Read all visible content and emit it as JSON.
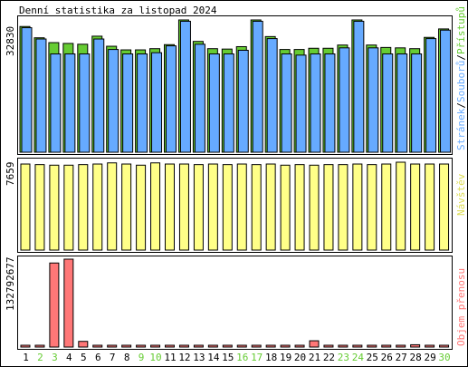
{
  "title": "Denní statistika za listopad 2024",
  "colors": {
    "pristupy": "#66cc33",
    "soubory": "#66aaff",
    "stranky": "#66aaff",
    "kb": "#ff7777",
    "navstevy": "#ffff88",
    "weekend_label": "#66cc33",
    "weekday_label": "#000000"
  },
  "panels": {
    "hits": {
      "ymax_label": "32830",
      "legend": [
        {
          "text": "Stránek",
          "color": "#66aaff"
        },
        {
          "text": "/",
          "color": "#000000"
        },
        {
          "text": "Souborů",
          "color": "#66aaff"
        },
        {
          "text": "/",
          "color": "#000000"
        },
        {
          "text": "Přístupů",
          "color": "#66cc33"
        }
      ]
    },
    "visits": {
      "ymax_label": "7659",
      "legend_text": "Návštěv"
    },
    "kb": {
      "ymax_label": "132792677",
      "legend_text": "Objem přenosu"
    }
  },
  "chart_data": [
    {
      "type": "bar",
      "title": "Denní statistika za listopad 2024",
      "categories": [
        "1",
        "2",
        "3",
        "4",
        "5",
        "6",
        "7",
        "8",
        "9",
        "10",
        "11",
        "12",
        "13",
        "14",
        "15",
        "16",
        "17",
        "18",
        "19",
        "20",
        "21",
        "22",
        "23",
        "24",
        "25",
        "26",
        "27",
        "28",
        "29",
        "30"
      ],
      "weekend_days": [
        "2",
        "3",
        "9",
        "10",
        "16",
        "17",
        "23",
        "24",
        "30"
      ],
      "ylim": [
        0,
        32830
      ],
      "series": [
        {
          "name": "Přístupů",
          "values": [
            31200,
            28400,
            27200,
            27000,
            26800,
            28800,
            26300,
            25400,
            25400,
            25700,
            26700,
            32830,
            27500,
            25700,
            25600,
            26200,
            32830,
            28700,
            25500,
            25500,
            25800,
            25800,
            26600,
            32830,
            26600,
            26000,
            25900,
            25700,
            28500,
            30600
          ]
        },
        {
          "name": "Souborů",
          "values": [
            30900,
            28100,
            24400,
            24400,
            24400,
            28100,
            25500,
            24400,
            24400,
            24700,
            26400,
            32500,
            26800,
            24400,
            24400,
            25300,
            32500,
            28200,
            24400,
            24100,
            24400,
            24400,
            25900,
            32500,
            25900,
            24400,
            24400,
            24400,
            28200,
            30300
          ]
        },
        {
          "name": "Stránek",
          "values": [
            30900,
            28100,
            24400,
            24400,
            24400,
            28100,
            25500,
            24400,
            24400,
            24700,
            26400,
            32500,
            26800,
            24400,
            24400,
            25300,
            32500,
            28200,
            24400,
            24100,
            24400,
            24400,
            25900,
            32500,
            25900,
            24400,
            24400,
            24400,
            28200,
            30300
          ]
        }
      ]
    },
    {
      "type": "bar",
      "categories": [
        "1",
        "2",
        "3",
        "4",
        "5",
        "6",
        "7",
        "8",
        "9",
        "10",
        "11",
        "12",
        "13",
        "14",
        "15",
        "16",
        "17",
        "18",
        "19",
        "20",
        "21",
        "22",
        "23",
        "24",
        "25",
        "26",
        "27",
        "28",
        "29",
        "30"
      ],
      "ylim": [
        0,
        7659
      ],
      "series": [
        {
          "name": "Návštěv",
          "values": [
            7500,
            7450,
            7400,
            7400,
            7450,
            7500,
            7600,
            7500,
            7400,
            7600,
            7500,
            7500,
            7450,
            7500,
            7450,
            7500,
            7450,
            7500,
            7400,
            7450,
            7400,
            7450,
            7450,
            7500,
            7450,
            7500,
            7659,
            7500,
            7500,
            7500
          ]
        }
      ]
    },
    {
      "type": "bar",
      "categories": [
        "1",
        "2",
        "3",
        "4",
        "5",
        "6",
        "7",
        "8",
        "9",
        "10",
        "11",
        "12",
        "13",
        "14",
        "15",
        "16",
        "17",
        "18",
        "19",
        "20",
        "21",
        "22",
        "23",
        "24",
        "25",
        "26",
        "27",
        "28",
        "29",
        "30"
      ],
      "ylim": [
        0,
        132792677
      ],
      "series": [
        {
          "name": "Objem přenosu",
          "values": [
            1700000,
            1700000,
            127000000,
            132792677,
            8600000,
            1700000,
            1700000,
            1700000,
            1700000,
            1700000,
            1700000,
            1700000,
            1700000,
            1700000,
            1700000,
            1700000,
            1700000,
            1700000,
            1700000,
            1700000,
            9500000,
            1700000,
            1700000,
            1700000,
            1700000,
            1700000,
            1700000,
            3500000,
            1700000,
            1700000
          ]
        }
      ]
    }
  ]
}
